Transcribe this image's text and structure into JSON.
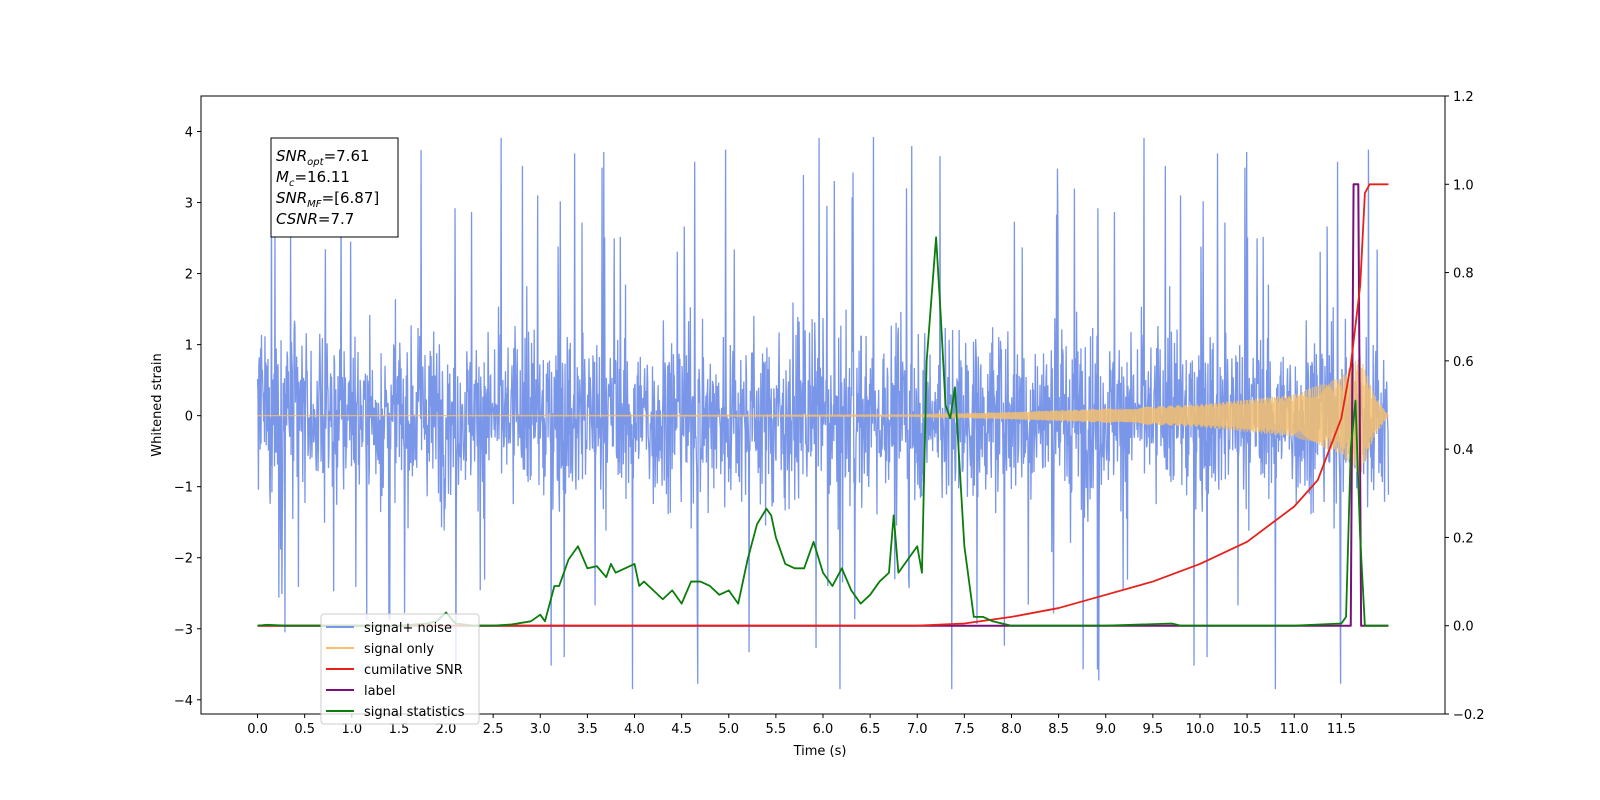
{
  "chart_data": {
    "type": "line",
    "title": "",
    "xlabel": "Time (s)",
    "ylabel": "Whitened strain",
    "xlim": [
      -0.6,
      12.6
    ],
    "ylim": [
      -4.2,
      4.5
    ],
    "y2lim": [
      -0.2,
      1.2
    ],
    "x_ticks": [
      "0.0",
      "0.5",
      "1.0",
      "1.5",
      "2.0",
      "2.5",
      "3.0",
      "3.5",
      "4.0",
      "4.5",
      "5.0",
      "5.5",
      "6.0",
      "6.5",
      "7.0",
      "7.5",
      "8.0",
      "8.5",
      "9.0",
      "9.5",
      "10.0",
      "10.5",
      "11.0",
      "11.5"
    ],
    "y_ticks": [
      "−4",
      "−3",
      "−2",
      "−1",
      "0",
      "1",
      "2",
      "3",
      "4"
    ],
    "y2_ticks": [
      "−0.2",
      "0.0",
      "0.2",
      "0.4",
      "0.6",
      "0.8",
      "1.0",
      "1.2"
    ],
    "grid": false,
    "legend_position": "lower-left",
    "annotation": {
      "lines": [
        {
          "base": "SNR",
          "sub": "opt",
          "rest": "=7.61"
        },
        {
          "base": "M",
          "sub": "c",
          "rest": "=16.11"
        },
        {
          "base": "SNR",
          "sub": "MF",
          "rest": "=[6.87]"
        },
        {
          "base": "CSNR",
          "sub": "",
          "rest": "=7.7"
        }
      ]
    },
    "series": [
      {
        "name": "signal+ noise",
        "color": "#7a96e8",
        "axis": "left",
        "kind": "noise",
        "x_range": [
          0.0,
          12.0
        ],
        "mean": 0.0,
        "band": [
          -1.8,
          1.8
        ],
        "extremes": [
          -3.85,
          4.1
        ]
      },
      {
        "name": "signal only",
        "color": "#f5bf6e",
        "axis": "left",
        "kind": "chirp",
        "x_range": [
          0.0,
          12.0
        ],
        "envelope": {
          "x": [
            0.0,
            7.0,
            8.0,
            9.0,
            10.0,
            11.0,
            11.5,
            11.7,
            11.85,
            12.0
          ],
          "amp": [
            0.0,
            0.01,
            0.05,
            0.1,
            0.16,
            0.3,
            0.55,
            0.85,
            0.3,
            0.0
          ]
        }
      },
      {
        "name": "cumilative SNR",
        "color": "#e8201a",
        "axis": "right",
        "x": [
          0.0,
          7.0,
          7.5,
          8.0,
          8.5,
          9.0,
          9.5,
          10.0,
          10.5,
          11.0,
          11.25,
          11.5,
          11.6,
          11.7,
          11.75,
          11.8,
          12.0
        ],
        "y": [
          0.0,
          0.0,
          0.005,
          0.02,
          0.04,
          0.07,
          0.1,
          0.14,
          0.19,
          0.27,
          0.33,
          0.47,
          0.59,
          0.77,
          0.98,
          1.0,
          1.0
        ]
      },
      {
        "name": "label",
        "color": "#7a0f7a",
        "axis": "right",
        "x": [
          0.0,
          11.6,
          11.63,
          11.68,
          11.71,
          12.0
        ],
        "y": [
          0.0,
          0.0,
          1.0,
          1.0,
          0.0,
          0.0
        ]
      },
      {
        "name": "signal statistics",
        "color": "#0a7d0a",
        "axis": "right",
        "x": [
          0.0,
          0.1,
          0.3,
          0.5,
          1.0,
          1.5,
          1.8,
          1.9,
          2.0,
          2.1,
          2.3,
          2.5,
          2.7,
          2.9,
          3.0,
          3.05,
          3.15,
          3.2,
          3.3,
          3.4,
          3.5,
          3.6,
          3.7,
          3.75,
          3.8,
          3.9,
          4.0,
          4.05,
          4.1,
          4.2,
          4.3,
          4.4,
          4.5,
          4.6,
          4.7,
          4.8,
          4.9,
          5.0,
          5.1,
          5.2,
          5.3,
          5.4,
          5.45,
          5.5,
          5.6,
          5.7,
          5.8,
          5.9,
          6.0,
          6.1,
          6.2,
          6.3,
          6.4,
          6.5,
          6.6,
          6.7,
          6.75,
          6.8,
          6.9,
          7.0,
          7.05,
          7.1,
          7.2,
          7.25,
          7.3,
          7.35,
          7.4,
          7.5,
          7.6,
          7.7,
          7.8,
          8.0,
          8.2,
          8.4,
          9.0,
          9.7,
          9.8,
          10.0,
          11.0,
          11.5,
          11.55,
          11.6,
          11.65,
          11.7,
          11.75,
          11.8,
          11.9,
          12.0
        ],
        "y": [
          0.0,
          0.002,
          0.0,
          0.0,
          0.0,
          0.0,
          0.005,
          0.01,
          0.03,
          0.005,
          0.0,
          0.0,
          0.003,
          0.01,
          0.025,
          0.01,
          0.09,
          0.09,
          0.15,
          0.18,
          0.13,
          0.135,
          0.11,
          0.14,
          0.12,
          0.13,
          0.14,
          0.09,
          0.1,
          0.08,
          0.06,
          0.08,
          0.05,
          0.1,
          0.1,
          0.09,
          0.07,
          0.08,
          0.05,
          0.15,
          0.23,
          0.265,
          0.25,
          0.2,
          0.14,
          0.13,
          0.13,
          0.19,
          0.12,
          0.09,
          0.13,
          0.08,
          0.05,
          0.07,
          0.1,
          0.12,
          0.25,
          0.12,
          0.15,
          0.18,
          0.12,
          0.6,
          0.88,
          0.7,
          0.5,
          0.47,
          0.54,
          0.18,
          0.02,
          0.02,
          0.01,
          0.0,
          0.0,
          0.0,
          0.0,
          0.005,
          0.0,
          0.0,
          0.0,
          0.005,
          0.02,
          0.4,
          0.51,
          0.2,
          0.0,
          0.0,
          0.0,
          0.0
        ]
      }
    ],
    "legend_entries": [
      "signal+ noise",
      "signal only",
      "cumilative SNR",
      "label",
      "signal statistics"
    ]
  }
}
